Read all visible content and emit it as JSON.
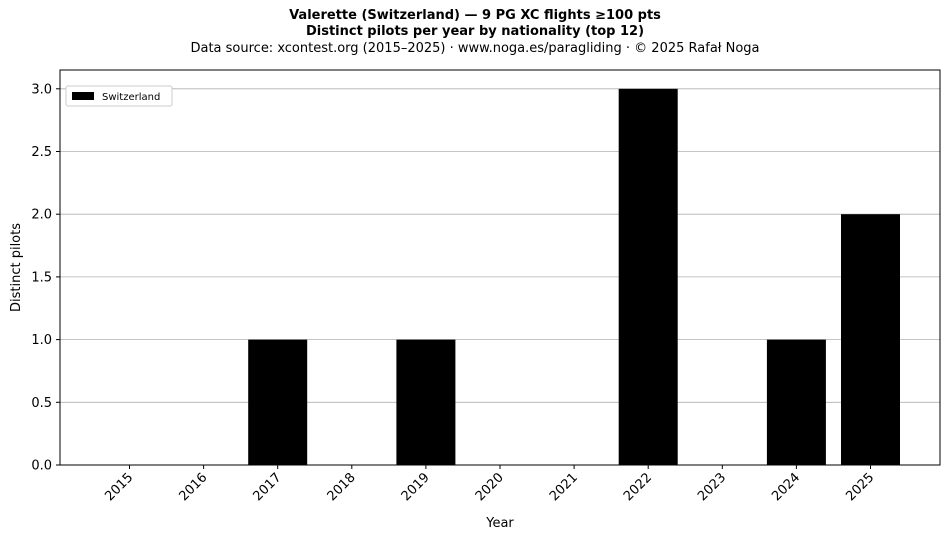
{
  "chart_data": {
    "type": "bar",
    "title": "Valerette (Switzerland)  —  9 PG XC flights ≥100 pts",
    "subtitle": "Distinct pilots per year by nationality (top 12)",
    "source": "Data source: xcontest.org (2015–2025)  ·  www.noga.es/paragliding  ·  © 2025 Rafał Noga",
    "xlabel": "Year",
    "ylabel": "Distinct pilots",
    "categories": [
      "2015",
      "2016",
      "2017",
      "2018",
      "2019",
      "2020",
      "2021",
      "2022",
      "2023",
      "2024",
      "2025"
    ],
    "series": [
      {
        "name": "Switzerland",
        "values": [
          0,
          0,
          1,
          0,
          1,
          0,
          0,
          3,
          0,
          1,
          2
        ],
        "color": "#000000"
      }
    ],
    "ylim": [
      0,
      3.15
    ],
    "yticks": [
      "0.0",
      "0.5",
      "1.0",
      "1.5",
      "2.0",
      "2.5",
      "3.0"
    ],
    "grid": "y",
    "legend_position": "upper-left"
  }
}
